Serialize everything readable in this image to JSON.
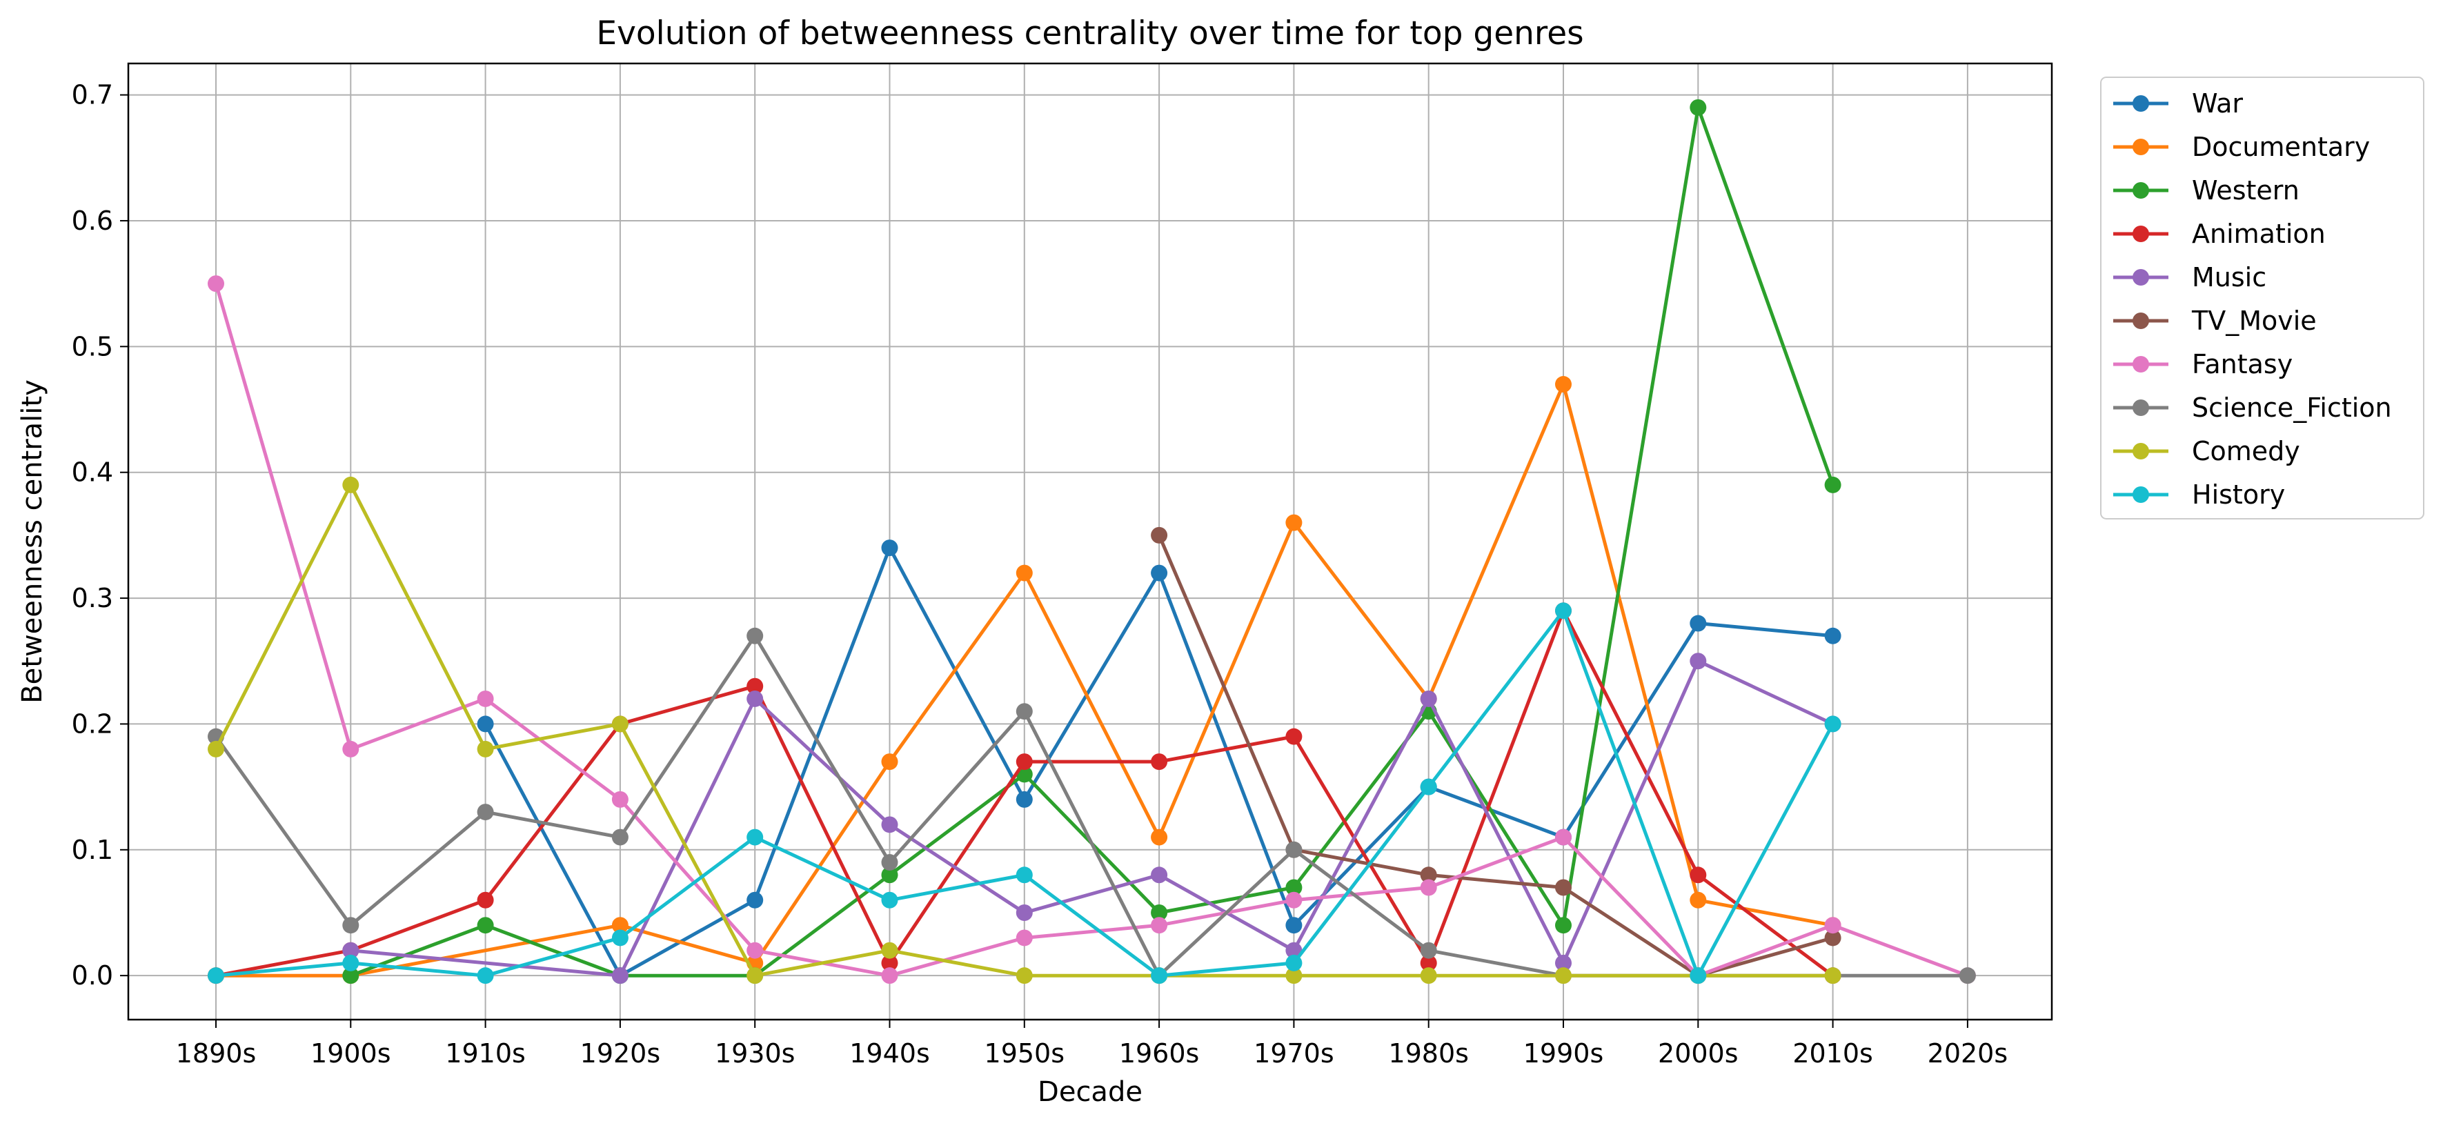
{
  "chart_data": {
    "type": "line",
    "title": "Evolution of betweenness centrality over time for top genres",
    "xlabel": "Decade",
    "ylabel": "Betweenness centrality",
    "categories": [
      "1890s",
      "1900s",
      "1910s",
      "1920s",
      "1930s",
      "1940s",
      "1950s",
      "1960s",
      "1970s",
      "1980s",
      "1990s",
      "2000s",
      "2010s",
      "2020s"
    ],
    "ylim": [
      -0.035,
      0.725
    ],
    "yticks": [
      0.0,
      0.1,
      0.2,
      0.3,
      0.4,
      0.5,
      0.6,
      0.7
    ],
    "ytick_labels": [
      "0.0",
      "0.1",
      "0.2",
      "0.3",
      "0.4",
      "0.5",
      "0.6",
      "0.7"
    ],
    "grid": true,
    "legend_position": "outside upper right",
    "series": [
      {
        "name": "War",
        "color": "#1f77b4",
        "values": [
          null,
          null,
          0.2,
          0.0,
          0.06,
          0.34,
          0.14,
          0.32,
          0.04,
          0.15,
          0.11,
          0.28,
          0.27,
          null
        ]
      },
      {
        "name": "Documentary",
        "color": "#ff7f0e",
        "values": [
          0.0,
          0.0,
          null,
          0.04,
          0.01,
          0.17,
          0.32,
          0.11,
          0.36,
          0.22,
          0.47,
          0.06,
          0.04,
          null
        ]
      },
      {
        "name": "Western",
        "color": "#2ca02c",
        "values": [
          null,
          0.0,
          0.04,
          0.0,
          0.0,
          0.08,
          0.16,
          0.05,
          0.07,
          0.21,
          0.04,
          0.69,
          0.39,
          null
        ]
      },
      {
        "name": "Animation",
        "color": "#d62728",
        "values": [
          0.0,
          0.02,
          0.06,
          0.2,
          0.23,
          0.01,
          0.17,
          0.17,
          0.19,
          0.01,
          0.29,
          0.08,
          0.0,
          null
        ]
      },
      {
        "name": "Music",
        "color": "#9467bd",
        "values": [
          null,
          0.02,
          null,
          0.0,
          0.22,
          0.12,
          0.05,
          0.08,
          0.02,
          0.22,
          0.01,
          0.25,
          0.2,
          null
        ]
      },
      {
        "name": "TV_Movie",
        "color": "#8c564b",
        "values": [
          null,
          null,
          null,
          null,
          null,
          null,
          null,
          0.35,
          0.1,
          0.08,
          0.07,
          0.0,
          0.03,
          null
        ]
      },
      {
        "name": "Fantasy",
        "color": "#e377c2",
        "values": [
          0.55,
          0.18,
          0.22,
          0.14,
          0.02,
          0.0,
          0.03,
          0.04,
          0.06,
          0.07,
          0.11,
          0.0,
          0.04,
          0.0
        ]
      },
      {
        "name": "Science_Fiction",
        "color": "#7f7f7f",
        "values": [
          0.19,
          0.04,
          0.13,
          0.11,
          0.27,
          0.09,
          0.21,
          0.0,
          0.1,
          0.02,
          0.0,
          0.0,
          0.0,
          0.0
        ]
      },
      {
        "name": "Comedy",
        "color": "#bcbd22",
        "values": [
          0.18,
          0.39,
          0.18,
          0.2,
          0.0,
          0.02,
          0.0,
          0.0,
          0.0,
          0.0,
          0.0,
          0.0,
          0.0,
          null
        ]
      },
      {
        "name": "History",
        "color": "#17becf",
        "values": [
          0.0,
          0.01,
          0.0,
          0.03,
          0.11,
          0.06,
          0.08,
          0.0,
          0.01,
          0.15,
          0.29,
          0.0,
          0.2,
          null
        ]
      }
    ]
  }
}
